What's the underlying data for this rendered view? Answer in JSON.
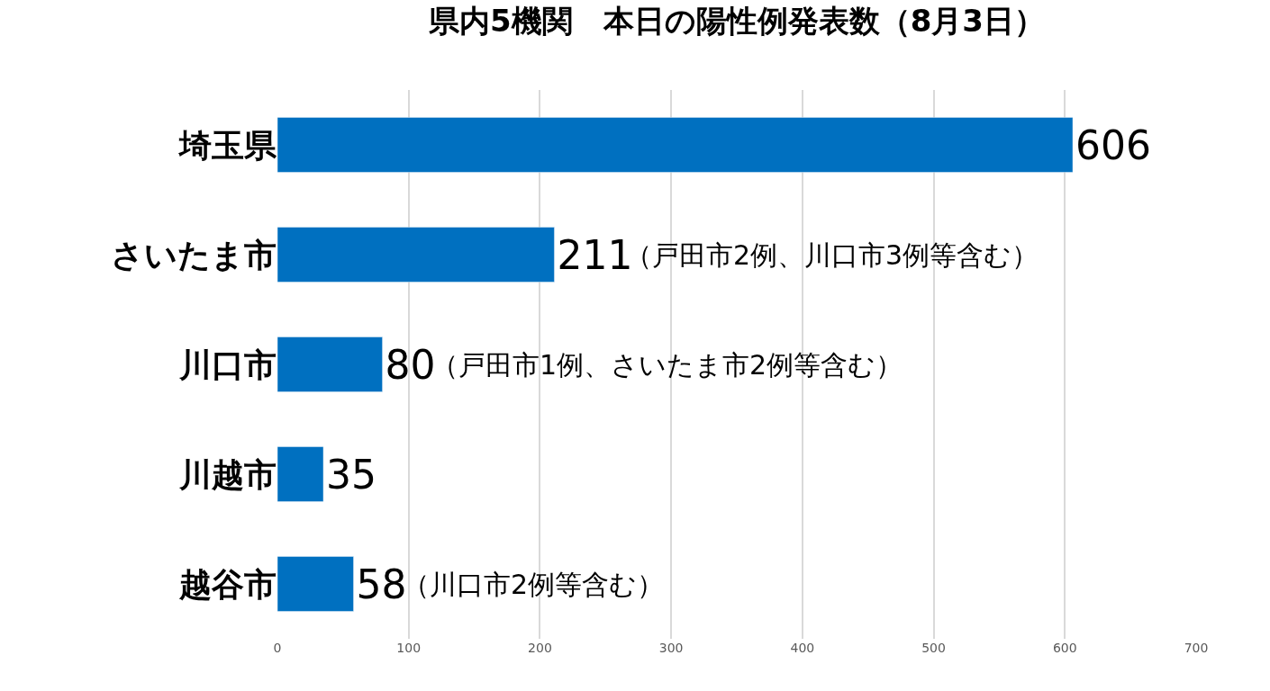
{
  "chart_data": {
    "type": "bar",
    "orientation": "horizontal",
    "title": "県内5機関　本日の陽性例発表数（8月3日）",
    "categories": [
      "埼玉県",
      "さいたま市",
      "川口市",
      "川越市",
      "越谷市"
    ],
    "values": [
      606,
      211,
      80,
      35,
      58
    ],
    "color": "#0070c0",
    "xlim": [
      0,
      700
    ],
    "xticks": [
      0,
      100,
      200,
      300,
      400,
      500,
      600,
      700
    ],
    "grid": "x",
    "data_labels": true,
    "legend": false,
    "annotations": [
      {
        "text": "（戸田市2例、川口市3例等含む）",
        "x": 211,
        "y": "さいたま市"
      },
      {
        "text": "（戸田市1例、さいたま市2例等含む）",
        "x": 80,
        "y": "川口市"
      },
      {
        "text": "（川口市2例等含む）",
        "x": 58,
        "y": "越谷市"
      }
    ]
  }
}
